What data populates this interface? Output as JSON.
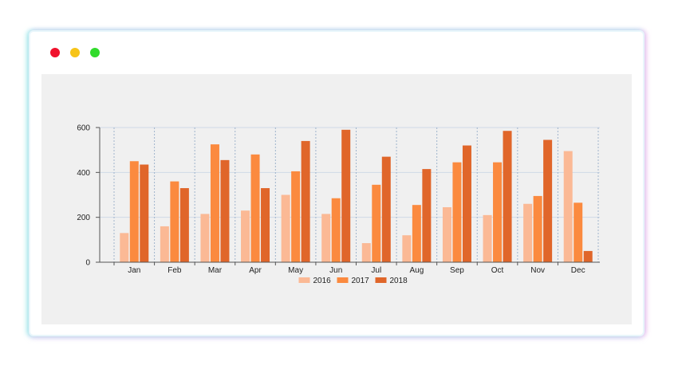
{
  "window": {
    "traffic_lights": {
      "close_color": "#f0112c",
      "minimize_color": "#f7c418",
      "maximize_color": "#31db2c"
    }
  },
  "chart_data": {
    "type": "bar",
    "categories": [
      "Jan",
      "Feb",
      "Mar",
      "Apr",
      "May",
      "Jun",
      "Jul",
      "Aug",
      "Sep",
      "Oct",
      "Nov",
      "Dec"
    ],
    "series": [
      {
        "name": "2016",
        "color": "#fbb995",
        "values": [
          130,
          160,
          215,
          230,
          300,
          215,
          85,
          120,
          245,
          210,
          260,
          495
        ]
      },
      {
        "name": "2017",
        "color": "#fb8a3f",
        "values": [
          450,
          360,
          525,
          480,
          405,
          285,
          345,
          255,
          445,
          445,
          295,
          265
        ]
      },
      {
        "name": "2018",
        "color": "#e0662a",
        "values": [
          435,
          330,
          455,
          330,
          540,
          590,
          470,
          415,
          520,
          585,
          545,
          50
        ]
      }
    ],
    "y_ticks": [
      "0",
      "200",
      "400",
      "600"
    ],
    "ylim": [
      0,
      600
    ],
    "grid": true,
    "legend_position": "bottom"
  }
}
